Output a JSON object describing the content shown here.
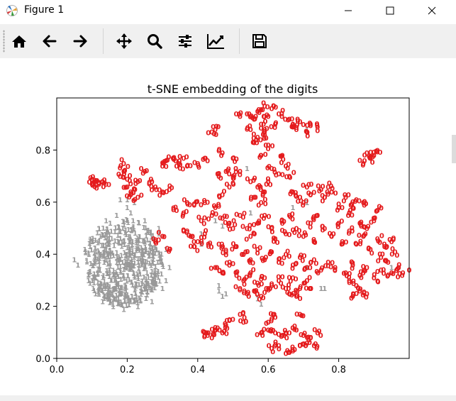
{
  "window": {
    "title": "Figure 1",
    "app_icon": "matplotlib-logo-icon",
    "controls": [
      "minimize-icon",
      "maximize-icon",
      "close-icon"
    ]
  },
  "toolbar": {
    "buttons": [
      {
        "name": "home-button",
        "icon": "home-icon"
      },
      {
        "name": "back-button",
        "icon": "arrow-left-icon"
      },
      {
        "name": "forward-button",
        "icon": "arrow-right-icon"
      },
      {
        "name": "pan-button",
        "icon": "move-arrows-icon"
      },
      {
        "name": "zoom-button",
        "icon": "magnifier-icon"
      },
      {
        "name": "subplots-button",
        "icon": "sliders-icon"
      },
      {
        "name": "axes-edit-button",
        "icon": "line-chart-icon"
      },
      {
        "name": "save-button",
        "icon": "floppy-disk-icon"
      }
    ]
  },
  "chart_data": {
    "type": "scatter",
    "title": "t-SNE embedding of the digits",
    "xlabel": "",
    "ylabel": "",
    "xlim": [
      0.0,
      1.0
    ],
    "ylim": [
      0.0,
      1.0
    ],
    "xticks": [
      "0.0",
      "0.2",
      "0.4",
      "0.6",
      "0.8"
    ],
    "yticks": [
      "0.0",
      "0.2",
      "0.4",
      "0.6",
      "0.8"
    ],
    "grid": false,
    "legend": "none",
    "marker_style": "text glyphs",
    "series": [
      {
        "label_glyph": "0",
        "color": "#e41a1c",
        "points": [
          [
            0.59,
            0.97
          ],
          [
            0.57,
            0.95
          ],
          [
            0.6,
            0.93
          ],
          [
            0.58,
            0.9
          ],
          [
            0.56,
            0.92
          ],
          [
            0.61,
            0.96
          ],
          [
            0.55,
            0.88
          ],
          [
            0.59,
            0.86
          ],
          [
            0.62,
            0.9
          ],
          [
            0.57,
            0.85
          ],
          [
            0.63,
            0.94
          ],
          [
            0.54,
            0.94
          ],
          [
            0.6,
            0.82
          ],
          [
            0.56,
            0.83
          ],
          [
            0.58,
            0.78
          ],
          [
            0.66,
            0.92
          ],
          [
            0.69,
            0.91
          ],
          [
            0.72,
            0.9
          ],
          [
            0.68,
            0.88
          ],
          [
            0.71,
            0.87
          ],
          [
            0.74,
            0.89
          ],
          [
            0.67,
            0.9
          ],
          [
            0.44,
            0.87
          ],
          [
            0.45,
            0.88
          ],
          [
            0.59,
            0.88
          ],
          [
            0.52,
            0.93
          ],
          [
            0.31,
            0.76
          ],
          [
            0.33,
            0.77
          ],
          [
            0.34,
            0.74
          ],
          [
            0.36,
            0.77
          ],
          [
            0.37,
            0.74
          ],
          [
            0.4,
            0.75
          ],
          [
            0.42,
            0.77
          ],
          [
            0.3,
            0.74
          ],
          [
            0.47,
            0.79
          ],
          [
            0.5,
            0.77
          ],
          [
            0.48,
            0.72
          ],
          [
            0.46,
            0.7
          ],
          [
            0.5,
            0.7
          ],
          [
            0.49,
            0.66
          ],
          [
            0.47,
            0.63
          ],
          [
            0.52,
            0.72
          ],
          [
            0.64,
            0.78
          ],
          [
            0.65,
            0.74
          ],
          [
            0.63,
            0.71
          ],
          [
            0.66,
            0.7
          ],
          [
            0.61,
            0.73
          ],
          [
            0.88,
            0.79
          ],
          [
            0.89,
            0.77
          ],
          [
            0.9,
            0.78
          ],
          [
            0.87,
            0.75
          ],
          [
            0.91,
            0.8
          ],
          [
            0.19,
            0.75
          ],
          [
            0.19,
            0.72
          ],
          [
            0.2,
            0.69
          ],
          [
            0.18,
            0.7
          ],
          [
            0.2,
            0.66
          ],
          [
            0.21,
            0.64
          ],
          [
            0.1,
            0.69
          ],
          [
            0.1,
            0.67
          ],
          [
            0.12,
            0.67
          ],
          [
            0.13,
            0.68
          ],
          [
            0.14,
            0.67
          ],
          [
            0.11,
            0.68
          ],
          [
            0.23,
            0.68
          ],
          [
            0.28,
            0.66
          ],
          [
            0.3,
            0.64
          ],
          [
            0.32,
            0.65
          ],
          [
            0.27,
            0.68
          ],
          [
            0.25,
            0.72
          ],
          [
            0.21,
            0.63
          ],
          [
            0.23,
            0.62
          ],
          [
            0.55,
            0.68
          ],
          [
            0.57,
            0.66
          ],
          [
            0.59,
            0.64
          ],
          [
            0.6,
            0.68
          ],
          [
            0.58,
            0.6
          ],
          [
            0.56,
            0.62
          ],
          [
            0.67,
            0.64
          ],
          [
            0.69,
            0.62
          ],
          [
            0.7,
            0.6
          ],
          [
            0.72,
            0.63
          ],
          [
            0.71,
            0.66
          ],
          [
            0.75,
            0.65
          ],
          [
            0.77,
            0.66
          ],
          [
            0.78,
            0.64
          ],
          [
            0.76,
            0.62
          ],
          [
            0.82,
            0.62
          ],
          [
            0.85,
            0.61
          ],
          [
            0.87,
            0.6
          ],
          [
            0.84,
            0.58
          ],
          [
            0.8,
            0.58
          ],
          [
            0.83,
            0.56
          ],
          [
            0.91,
            0.57
          ],
          [
            0.9,
            0.53
          ],
          [
            0.86,
            0.52
          ],
          [
            0.88,
            0.5
          ],
          [
            0.37,
            0.6
          ],
          [
            0.39,
            0.59
          ],
          [
            0.36,
            0.56
          ],
          [
            0.34,
            0.57
          ],
          [
            0.42,
            0.6
          ],
          [
            0.45,
            0.58
          ],
          [
            0.44,
            0.55
          ],
          [
            0.41,
            0.53
          ],
          [
            0.36,
            0.49
          ],
          [
            0.38,
            0.47
          ],
          [
            0.4,
            0.45
          ],
          [
            0.42,
            0.48
          ],
          [
            0.39,
            0.43
          ],
          [
            0.43,
            0.44
          ],
          [
            0.47,
            0.54
          ],
          [
            0.49,
            0.52
          ],
          [
            0.5,
            0.5
          ],
          [
            0.52,
            0.55
          ],
          [
            0.54,
            0.5
          ],
          [
            0.55,
            0.47
          ],
          [
            0.57,
            0.52
          ],
          [
            0.59,
            0.55
          ],
          [
            0.61,
            0.5
          ],
          [
            0.62,
            0.46
          ],
          [
            0.64,
            0.52
          ],
          [
            0.65,
            0.48
          ],
          [
            0.66,
            0.55
          ],
          [
            0.68,
            0.5
          ],
          [
            0.7,
            0.47
          ],
          [
            0.72,
            0.52
          ],
          [
            0.73,
            0.45
          ],
          [
            0.74,
            0.55
          ],
          [
            0.76,
            0.5
          ],
          [
            0.78,
            0.47
          ],
          [
            0.8,
            0.52
          ],
          [
            0.81,
            0.45
          ],
          [
            0.83,
            0.49
          ],
          [
            0.85,
            0.44
          ],
          [
            0.87,
            0.47
          ],
          [
            0.89,
            0.42
          ],
          [
            0.91,
            0.46
          ],
          [
            0.93,
            0.43
          ],
          [
            0.95,
            0.45
          ],
          [
            0.96,
            0.41
          ],
          [
            0.92,
            0.39
          ],
          [
            0.94,
            0.37
          ],
          [
            0.46,
            0.44
          ],
          [
            0.48,
            0.41
          ],
          [
            0.51,
            0.43
          ],
          [
            0.53,
            0.4
          ],
          [
            0.55,
            0.38
          ],
          [
            0.57,
            0.42
          ],
          [
            0.59,
            0.38
          ],
          [
            0.61,
            0.41
          ],
          [
            0.63,
            0.37
          ],
          [
            0.65,
            0.4
          ],
          [
            0.67,
            0.36
          ],
          [
            0.69,
            0.39
          ],
          [
            0.71,
            0.35
          ],
          [
            0.73,
            0.38
          ],
          [
            0.75,
            0.34
          ],
          [
            0.77,
            0.37
          ],
          [
            0.79,
            0.35
          ],
          [
            0.82,
            0.33
          ],
          [
            0.84,
            0.36
          ],
          [
            0.86,
            0.32
          ],
          [
            0.88,
            0.35
          ],
          [
            0.9,
            0.31
          ],
          [
            0.92,
            0.34
          ],
          [
            0.95,
            0.33
          ],
          [
            0.97,
            0.35
          ],
          [
            1.0,
            0.34
          ],
          [
            0.98,
            0.32
          ],
          [
            0.45,
            0.35
          ],
          [
            0.47,
            0.33
          ],
          [
            0.49,
            0.36
          ],
          [
            0.51,
            0.32
          ],
          [
            0.53,
            0.3
          ],
          [
            0.55,
            0.33
          ],
          [
            0.57,
            0.29
          ],
          [
            0.59,
            0.31
          ],
          [
            0.61,
            0.28
          ],
          [
            0.63,
            0.3
          ],
          [
            0.65,
            0.27
          ],
          [
            0.67,
            0.31
          ],
          [
            0.69,
            0.27
          ],
          [
            0.71,
            0.3
          ],
          [
            0.52,
            0.27
          ],
          [
            0.54,
            0.25
          ],
          [
            0.56,
            0.26
          ],
          [
            0.58,
            0.24
          ],
          [
            0.6,
            0.27
          ],
          [
            0.66,
            0.25
          ],
          [
            0.68,
            0.24
          ],
          [
            0.72,
            0.27
          ],
          [
            0.85,
            0.28
          ],
          [
            0.86,
            0.26
          ],
          [
            0.88,
            0.25
          ],
          [
            0.84,
            0.24
          ],
          [
            0.83,
            0.3
          ],
          [
            0.28,
            0.45
          ],
          [
            0.3,
            0.47
          ],
          [
            0.32,
            0.42
          ],
          [
            0.58,
            0.1
          ],
          [
            0.6,
            0.11
          ],
          [
            0.62,
            0.1
          ],
          [
            0.64,
            0.09
          ],
          [
            0.66,
            0.1
          ],
          [
            0.68,
            0.11
          ],
          [
            0.7,
            0.09
          ],
          [
            0.72,
            0.08
          ],
          [
            0.74,
            0.1
          ],
          [
            0.71,
            0.06
          ],
          [
            0.73,
            0.05
          ],
          [
            0.69,
            0.05
          ],
          [
            0.67,
            0.03
          ],
          [
            0.61,
            0.04
          ],
          [
            0.63,
            0.05
          ],
          [
            0.65,
            0.02
          ],
          [
            0.43,
            0.1
          ],
          [
            0.45,
            0.12
          ],
          [
            0.47,
            0.1
          ],
          [
            0.44,
            0.08
          ],
          [
            0.42,
            0.09
          ],
          [
            0.48,
            0.13
          ],
          [
            0.49,
            0.15
          ],
          [
            0.52,
            0.17
          ],
          [
            0.53,
            0.14
          ],
          [
            0.6,
            0.14
          ],
          [
            0.62,
            0.16
          ],
          [
            0.69,
            0.17
          ]
        ]
      },
      {
        "label_glyph": "1",
        "color": "#999999",
        "cluster_center": [
          0.19,
          0.37
        ],
        "cluster_spread": [
          0.09,
          0.14
        ],
        "points": [
          [
            0.05,
            0.38
          ],
          [
            0.06,
            0.36
          ],
          [
            0.08,
            0.42
          ],
          [
            0.09,
            0.3
          ],
          [
            0.1,
            0.45
          ],
          [
            0.11,
            0.25
          ],
          [
            0.12,
            0.5
          ],
          [
            0.13,
            0.22
          ],
          [
            0.14,
            0.53
          ],
          [
            0.16,
            0.2
          ],
          [
            0.17,
            0.55
          ],
          [
            0.19,
            0.19
          ],
          [
            0.21,
            0.56
          ],
          [
            0.23,
            0.2
          ],
          [
            0.25,
            0.53
          ],
          [
            0.27,
            0.22
          ],
          [
            0.29,
            0.48
          ],
          [
            0.3,
            0.27
          ],
          [
            0.31,
            0.42
          ],
          [
            0.32,
            0.35
          ],
          [
            0.31,
            0.3
          ],
          [
            0.29,
            0.5
          ],
          [
            0.18,
            0.61
          ],
          [
            0.2,
            0.58
          ],
          [
            0.22,
            0.6
          ],
          [
            0.46,
            0.26
          ],
          [
            0.47,
            0.24
          ],
          [
            0.48,
            0.25
          ],
          [
            0.46,
            0.28
          ],
          [
            0.2,
            0.61
          ],
          [
            0.54,
            0.73
          ],
          [
            0.71,
            0.88
          ],
          [
            0.71,
            0.6
          ],
          [
            0.67,
            0.58
          ],
          [
            0.75,
            0.27
          ],
          [
            0.47,
            0.51
          ],
          [
            0.45,
            0.53
          ],
          [
            0.55,
            0.56
          ],
          [
            0.41,
            0.48
          ],
          [
            0.41,
            0.44
          ],
          [
            0.71,
            0.35
          ],
          [
            0.57,
            0.23
          ],
          [
            0.58,
            0.21
          ],
          [
            0.76,
            0.27
          ],
          [
            0.95,
            0.35
          ]
        ]
      }
    ]
  }
}
